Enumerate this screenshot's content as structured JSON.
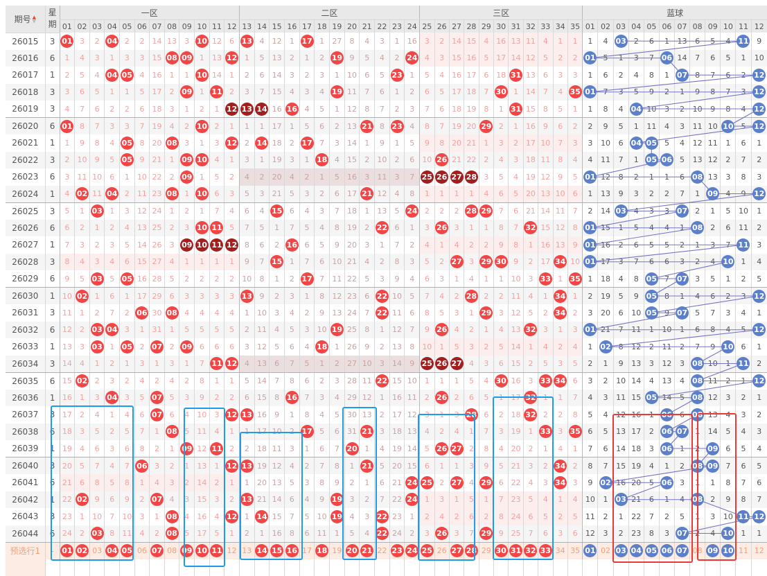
{
  "header": {
    "issue_label": "期号",
    "week_label_top": "星",
    "week_label_bottom": "期",
    "zones": [
      "一区",
      "二区",
      "三区",
      "蓝球"
    ],
    "zone_columns": [
      [
        "01",
        "02",
        "03",
        "04",
        "05",
        "06",
        "07",
        "08",
        "09",
        "10",
        "11",
        "12"
      ],
      [
        "13",
        "14",
        "15",
        "16",
        "17",
        "18",
        "19",
        "20",
        "21",
        "22",
        "23",
        "24"
      ],
      [
        "25",
        "26",
        "27",
        "28",
        "29",
        "30",
        "31",
        "32",
        "33",
        "34",
        "35"
      ],
      [
        "01",
        "02",
        "03",
        "04",
        "05",
        "06",
        "07",
        "08",
        "09",
        "10",
        "11",
        "12"
      ]
    ]
  },
  "legend": {
    "ball_marker": "* = drawn ball, # = consecutive drawn ball"
  },
  "colors": {
    "red_ball": "#f24545",
    "dark_ball": "#a11f1f",
    "blue_ball": "#5b7fc9",
    "box_blue": "#1d9cea",
    "box_red": "#e83838"
  },
  "rows": [
    {
      "issue": "26015",
      "week": "3",
      "z1": "*01 3 2 *04 2 2 14 13 3 *10 12 6",
      "z2": "*13 4 12 1 *17 1 27 8 4 3 1 16",
      "z3": "3 2 14 15 4 16 13 11 4 1 1",
      "b": "1 4 *03 2 6 1 13 6 5 4 *11 9"
    },
    {
      "issue": "26016",
      "week": "6",
      "z1": "1 4 3 1 3 3 15 *08 *09 1 13 *12",
      "z2": "1 5 13 2 1 2 *19 9 5 4 2 *24",
      "z3": "4 3 15 16 5 17 14 12 5 2 2",
      "b": "*01 5 1 3 7 *06 14 7 6 5 1 10"
    },
    {
      "issue": "26017",
      "week": "1",
      "z1": "2 5 4 *04 *05 4 16 1 1 *10 14 1",
      "z2": "2 6 14 3 2 3 1 10 6 5 *23 1",
      "z3": "5 4 16 17 6 18 *31 13 6 3 3",
      "b": "1 6 2 4 8 1 *07 8 7 6 2 *12"
    },
    {
      "issue": "26018",
      "week": "3",
      "z1": "3 6 5 1 1 5 17 2 *09 1 *11 2",
      "z2": "3 7 15 4 3 4 *19 11 7 6 1 2",
      "z3": "6 5 17 18 7 *30 1 14 7 4 *35",
      "b": "*01 7 3 5 9 2 1 9 8 7 3 *12"
    },
    {
      "issue": "26019",
      "week": "3",
      "z1": "4 7 6 2 2 6 18 3 1 2 1 #12",
      "z2": "#13 #14 16 *16 4 5 1 12 8 7 2 3",
      "z3": "7 6 18 19 8 1 *31 15 8 5 1",
      "b": "1 8 4 *04 10 3 2 10 9 8 4 *12"
    },
    {
      "issue": "26020",
      "week": "6",
      "z1": "*01 8 7 3 3 7 19 4 2 *10 2 1",
      "z2": "1 1 17 1 5 6 2 13 *21 8 *23 4",
      "z3": "8 7 19 20 *29 2 1 16 9 6 2",
      "b": "2 9 5 1 11 4 3 11 10 *10 5 *12"
    },
    {
      "issue": "26021",
      "week": "1",
      "z1": "1 9 8 4 *05 8 20 *08 3 1 3 *12",
      "z2": "2 *14 18 2 *17 7 3 14 1 9 1 5",
      "z3": "9 8 20 21 1 3 2 17 10 7 3",
      "b": "3 10 6 *04 *05 5 4 12 11 1 6 1"
    },
    {
      "issue": "26022",
      "week": "3",
      "z1": "2 10 9 5 *05 9 21 1 *09 *10 4 1",
      "z2": "3 1 19 3 1 *18 4 15 2 10 2 6",
      "z3": "10 *26 21 22 2 4 3 18 11 8 4",
      "b": "4 11 7 1 *05 *06 5 13 12 2 7 2"
    },
    {
      "issue": "26023",
      "week": "6",
      "z1": "3 11 10 6 1 10 22 2 *09 1 5 2",
      "z2": "4 2 20 4 2 1 5 16 3 11 3 7",
      "z3": "#25 #26 #27 #28 3 5 4 19 12 9 5",
      "b": "*01 12 8 2 1 1 6 *08 13 3 8 3"
    },
    {
      "issue": "26024",
      "week": "1",
      "z1": "4 *02 11 *04 2 11 23 *08 1 *10 6 3",
      "z2": "5 3 21 5 3 2 6 17 *21 12 4 8",
      "z3": "1 1 1 1 4 6 5 20 13 10 6",
      "b": "1 13 9 3 2 2 7 1 *09 4 9 *12"
    },
    {
      "issue": "26025",
      "week": "3",
      "z1": "5 1 *03 1 3 12 24 1 2 1 7 4",
      "z2": "6 4 *15 6 4 3 7 18 1 13 5 *24",
      "z3": "2 2 2 *28 *29 7 6 21 14 11 7",
      "b": "2 14 *03 4 3 3 *07 2 1 5 10 1"
    },
    {
      "issue": "26026",
      "week": "6",
      "z1": "6 2 1 2 4 13 25 2 3 *10 *11 5",
      "z2": "7 5 1 7 5 4 8 19 2 *22 6 1",
      "z3": "3 *26 3 1 1 8 7 *32 15 12 8",
      "b": "*01 15 1 5 4 4 1 *08 2 6 11 2"
    },
    {
      "issue": "26027",
      "week": "1",
      "z1": "7 3 2 3 5 14 26 3 #09 #10 #11 #12",
      "z2": "8 6 2 *16 6 5 9 20 3 1 7 2",
      "z3": "4 1 4 2 2 9 8 1 16 13 9",
      "b": "*01 16 2 6 5 5 2 1 3 7 *11 3"
    },
    {
      "issue": "26028",
      "week": "3",
      "z1": "8 4 3 4 6 15 27 4 1 1 1 1",
      "z2": "9 7 *15 1 7 6 10 21 4 2 8 3",
      "z3": "5 2 *27 3 *29 *30 9 2 17 *34 10",
      "b": "*01 17 3 7 6 6 3 2 4 *10 1 4"
    },
    {
      "issue": "26029",
      "week": "6",
      "z1": "9 5 *03 5 *05 16 28 5 2 2 2 2",
      "z2": "10 8 1 2 *17 7 11 22 5 3 9 4",
      "z3": "6 3 1 4 1 1 10 3 *33 1 *35",
      "b": "1 18 4 8 *05 7 *07 3 5 1 2 5"
    },
    {
      "issue": "26030",
      "week": "1",
      "z1": "10 *02 1 6 1 17 29 6 3 3 3 3",
      "z2": "*13 9 2 3 1 8 12 23 6 *22 10 5",
      "z3": "7 4 2 *28 2 2 11 4 1 *34 1",
      "b": "2 19 5 9 *05 8 1 4 6 2 3 *12"
    },
    {
      "issue": "26031",
      "week": "3",
      "z1": "11 1 2 7 2 *06 30 *08 4 4 4 4",
      "z2": "1 10 3 4 2 9 13 24 7 *22 11 6",
      "z3": "8 5 3 1 *29 3 12 5 2 *34 2",
      "b": "3 20 6 10 *05 9 *07 5 7 3 4 1"
    },
    {
      "issue": "26032",
      "week": "6",
      "z1": "12 2 *03 *04 3 1 31 1 5 5 5 5",
      "z2": "2 11 4 5 3 10 *19 25 8 1 12 7",
      "z3": "9 *26 4 2 1 4 13 *32 3 1 3",
      "b": "*01 21 7 11 1 10 1 6 8 4 5 *12"
    },
    {
      "issue": "26033",
      "week": "1",
      "z1": "13 3 *03 1 *05 2 *07 2 *09 6 6 6",
      "z2": "3 12 5 6 4 *18 1 26 9 2 13 8",
      "z3": "10 1 5 3 2 5 14 1 4 2 4",
      "b": "1 *02 8 12 2 11 2 7 9 *10 6 1"
    },
    {
      "issue": "26034",
      "week": "3",
      "z1": "14 4 1 2 1 3 1 3 1 7 *11 *12",
      "z2": "4 13 6 7 5 1 2 27 10 3 14 9",
      "z3": "#25 #26 #27 4 3 6 15 2 5 3 5",
      "b": "2 1 9 13 3 12 3 *08 10 1 *11 2"
    },
    {
      "issue": "26035",
      "week": "6",
      "z1": "15 *02 2 3 2 4 2 4 2 8 1 1",
      "z2": "5 14 7 8 6 2 3 28 11 *22 15 10",
      "z3": "1 1 1 5 4 *30 16 3 *33 *34 6",
      "b": "3 2 10 14 4 13 4 *08 11 2 1 *12"
    },
    {
      "issue": "26036",
      "week": "1",
      "z1": "16 1 3 *04 3 5 *07 5 3 9 2 2",
      "z2": "6 15 8 *16 7 3 4 29 12 1 16 11",
      "z3": "2 *26 2 6 5 1 17 *32 1 1 7",
      "b": "4 3 11 15 *05 14 5 *08 12 3 2 1"
    },
    {
      "issue": "26037",
      "week": "3",
      "z1": "17 2 4 1 4 6 *07 6 4 10 3 *12",
      "z2": "*13 16 9 1 8 4 5 30 13 2 17 12",
      "z3": "3 1 3 *28 6 2 18 *32 2 2 8",
      "b": "5 4 12 16 1 *06 6 *08 13 4 3 2"
    },
    {
      "issue": "26038",
      "week": "6",
      "z1": "18 3 5 2 5 7 1 *08 5 11 4 1",
      "z2": "1 17 10 2 *17 5 6 31 *21 3 18 13",
      "z3": "4 2 4 1 7 3 19 1 *33 3 *35",
      "b": "6 5 13 17 2 *06 *07 1 14 5 4 3"
    },
    {
      "issue": "26039",
      "week": "1",
      "z1": "19 4 6 3 6 8 2 1 *09 12 *11 2",
      "z2": "2 18 11 3 1 6 7 *20 1 4 19 14",
      "z3": "5 *26 *27 2 8 4 20 2 1 4 1",
      "b": "7 6 14 18 3 *06 1 2 *09 6 5 4"
    },
    {
      "issue": "26040",
      "week": "3",
      "z1": "20 5 7 4 7 *06 3 2 1 13 1 *12",
      "z2": "*13 19 12 4 2 7 8 1 *21 5 20 15",
      "z3": "6 1 1 3 9 5 21 3 2 *34 2",
      "b": "8 7 15 19 4 1 2 *08 *09 7 6 5"
    },
    {
      "issue": "26041",
      "week": "6",
      "z1": "21 6 8 5 8 1 4 3 2 14 2 1",
      "z2": "1 20 13 5 3 8 9 2 1 6 21 *24",
      "z3": "*25 2 *27 4 *29 6 22 4 3 *34 3",
      "b": "9 *02 16 20 5 *06 3 1 1 8 7 6"
    },
    {
      "issue": "26042",
      "week": "1",
      "z1": "22 *02 9 6 9 2 *07 4 3 15 3 2",
      "z2": "*13 21 14 6 4 9 *19 3 2 7 22 *24",
      "z3": "1 3 1 5 1 7 23 5 4 1 4",
      "b": "10 1 *03 21 6 1 4 *08 2 9 8 7"
    },
    {
      "issue": "26043",
      "week": "3",
      "z1": "23 1 10 7 10 3 1 *08 4 16 4 *12",
      "z2": "1 *14 15 7 5 10 *19 4 3 *22 23 1",
      "z3": "2 4 2 6 2 8 24 6 5 2 5",
      "b": "11 2 1 22 7 2 5 1 3 10 *11 *12"
    },
    {
      "issue": "26044",
      "week": "6",
      "z1": "24 2 *03 8 11 4 2 *08 5 17 5 1",
      "z2": "2 1 16 8 6 11 1 5 4 *22 24 2",
      "z3": "3 *26 3 7 *29 9 25 7 6 3 6",
      "b": "12 3 2 23 8 3 *07 2 4 *10 1 1"
    }
  ],
  "preselect": {
    "label": "预选行1",
    "week": "-",
    "z1": "*01 *02 03 *04 *05 06 *07 08 *09 *10 *11 12",
    "z2": "13 *14 *15 *16 17 *18 19 *20 *21 22 *23 *24",
    "z3": "*25 26 *27 *28 29 *30 *31 *32 *33 34 35",
    "b": "*01 02 *03 *04 *05 *06 *07 08 *09 *10 11 12"
  }
}
